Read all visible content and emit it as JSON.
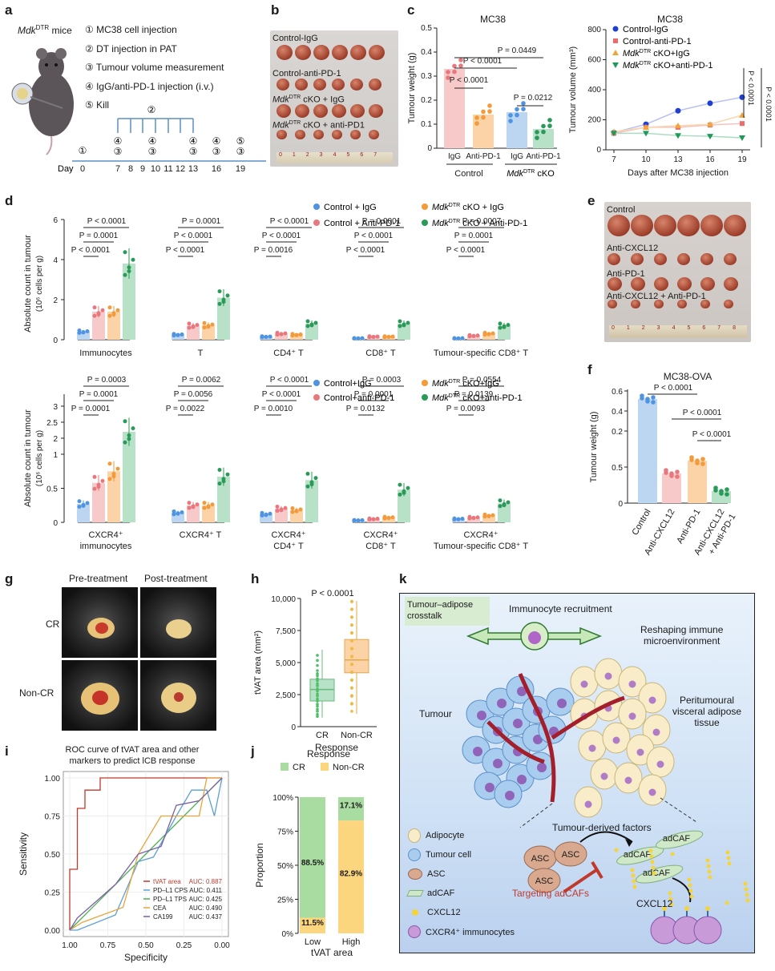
{
  "panel_labels": {
    "a": "a",
    "b": "b",
    "c": "c",
    "d": "d",
    "e": "e",
    "f": "f",
    "g": "g",
    "h": "h",
    "i": "i",
    "j": "j",
    "k": "k"
  },
  "panel_a": {
    "mouse_label": "Mdk",
    "mouse_sup": "DTR",
    "mouse_suffix": " mice",
    "steps": [
      "① MC38 cell injection",
      "② DT injection in PAT",
      "③ Tumour volume measurement",
      "④ IgG/anti-PD-1 injection (i.v.)",
      "⑤ Kill"
    ],
    "day_label": "Day",
    "days": [
      "0",
      "7",
      "8",
      "9",
      "10",
      "11",
      "12",
      "13",
      "16",
      "19"
    ]
  },
  "panel_b": {
    "labels": [
      "Control-IgG",
      "Control-anti-PD-1",
      "Mdk",
      "Mdk"
    ],
    "label3_rest": "cKO + IgG",
    "label4_rest": "cKO + anti-PD1",
    "sup": "DTR"
  },
  "panel_c_weight": {
    "title": "MC38",
    "ylabel": "Tumour weight (g)",
    "pvals": [
      "P = 0.0449",
      "P < 0.0001",
      "P < 0.0001",
      "P = 0.0212"
    ],
    "groups": [
      "IgG",
      "Anti-PD-1",
      "IgG",
      "Anti-PD-1"
    ],
    "group_labels": [
      "Control",
      "Mdk",
      "cKO"
    ],
    "group_sup": "DTR"
  },
  "panel_c_volume": {
    "title": "MC38",
    "ylabel": "Tumour volume (mm³)",
    "xlabel": "Days after MC38 injection",
    "legend": [
      "Control-IgG",
      "Control-anti-PD-1",
      "Mdk",
      "Mdk"
    ],
    "legend_rest": [
      "cKO+IgG",
      "cKO+anti-PD-1"
    ],
    "sup": "DTR",
    "pvals": [
      "P < 0.0001",
      "P < 0.0001"
    ]
  },
  "panel_d": {
    "legend": [
      "Control + IgG",
      "Mdk",
      "Control + Anti-PD-1",
      "Mdk"
    ],
    "legend_rest": [
      "cKO + IgG",
      "cKO + Anti-PD-1"
    ],
    "sup": "DTR",
    "ylabel_top": "Absolute count in tumour",
    "ylabel_top2": "(10⁶ cells per g)",
    "top_cats": [
      "Immunocytes",
      "T",
      "CD4⁺ T",
      "CD8⁺ T",
      "Tumour-specific CD8⁺ T"
    ],
    "top_pvals": [
      [
        "P < 0.0001",
        "P = 0.0001",
        "P < 0.0001"
      ],
      [
        "P < 0.0001",
        "P < 0.0001",
        "P = 0.0001"
      ],
      [
        "P = 0.0016",
        "P < 0.0001",
        "P < 0.0001"
      ],
      [
        "P < 0.0001",
        "P < 0.0001",
        "P = 0.0001"
      ],
      [
        "P < 0.0001",
        "P = 0.0001",
        "P = 0.0007"
      ]
    ],
    "legend2": [
      "Control+IgG",
      "Mdk",
      "Control+anti-PD-1",
      "Mdk"
    ],
    "legend2_rest": [
      "cKO+IgG",
      "cKO+anti-PD-1"
    ],
    "sup2": "DTR",
    "bot_cats": [
      [
        "CXCR4⁺",
        "immunocytes"
      ],
      [
        "CXCR4⁺ T",
        ""
      ],
      [
        "CXCR4⁺",
        "CD4⁺ T"
      ],
      [
        "CXCR4⁺",
        "CD8⁺ T"
      ],
      [
        "CXCR4⁺",
        "Tumour-specific CD8⁺ T"
      ]
    ],
    "bot_pvals": [
      [
        "P = 0.0001",
        "P = 0.0001",
        "P = 0.0003"
      ],
      [
        "P = 0.0022",
        "P = 0.0056",
        "P = 0.0062"
      ],
      [
        "P = 0.0010",
        "P < 0.0001",
        "P < 0.0001"
      ],
      [
        "P = 0.0132",
        "P = 0.0001",
        "P = 0.0003"
      ],
      [
        "P = 0.0093",
        "P = 0.0139",
        "P = 0.0554"
      ]
    ]
  },
  "panel_e": {
    "labels": [
      "Control",
      "Anti-CXCL12",
      "Anti-PD-1",
      "Anti-CXCL12 + Anti-PD-1"
    ]
  },
  "panel_f": {
    "title": "MC38-OVA",
    "ylabel": "Tumour weight (g)",
    "cats": [
      "Control",
      "Anti-CXCL12",
      "Anti-PD-1",
      "Anti-CXCL12",
      "+ Anti-PD-1"
    ],
    "pvals": [
      "P < 0.0001",
      "P < 0.0001",
      "P < 0.0001"
    ]
  },
  "panel_g": {
    "cols": [
      "Pre-treatment",
      "Post-treatment"
    ],
    "rows": [
      "CR",
      "Non-CR"
    ]
  },
  "panel_h": {
    "pval": "P < 0.0001",
    "ylabel": "tVAT area (mm²)",
    "xlabel": "Response",
    "cats": [
      "CR",
      "Non-CR"
    ]
  },
  "panel_i": {
    "title1": "ROC curve of tVAT area and other",
    "title2": "markers to predict lCB response",
    "xlabel": "Specificity",
    "ylabel": "Sensitivity",
    "legend": [
      {
        "name": "tVAT area",
        "auc": "AUC: 0.887",
        "color": "#c0392b"
      },
      {
        "name": "PD–L1 CPS",
        "auc": "AUC: 0.411",
        "color": "#5aa0d6"
      },
      {
        "name": "PD–L1 TPS",
        "auc": "AUC: 0.425",
        "color": "#4caf50"
      },
      {
        "name": "CEA",
        "auc": "AUC: 0.490",
        "color": "#e8a33d"
      },
      {
        "name": "CA199",
        "auc": "AUC: 0.437",
        "color": "#7b5ea7"
      }
    ]
  },
  "panel_j": {
    "title": "Response",
    "legend": [
      "CR",
      "Non-CR"
    ],
    "ylabel": "Proportion",
    "xlabel": "tVAT area",
    "cats": [
      "Low",
      "High"
    ],
    "labels": [
      "88.5%",
      "11.5%",
      "17.1%",
      "82.9%"
    ]
  },
  "panel_k": {
    "crosstalk": "Tumour–adipose crosstalk",
    "recruit": "Immunocyte recruitment",
    "reshape1": "Reshaping immune",
    "reshape2": "microenvironment",
    "tumour": "Tumour",
    "peri1": "Peritumoural",
    "peri2": "visceral adipose",
    "peri3": "tissue",
    "factors": "Tumour-derived factors",
    "asc": "ASC",
    "adcaf": "adCAF",
    "target": "Targeting adCAFs",
    "cxcl12": "CXCL12",
    "legend": [
      "Adipocyte",
      "Tumour cell",
      "ASC",
      "adCAF",
      "CXCL12",
      "CXCR4⁺ immunocytes"
    ]
  },
  "chart_data": [
    {
      "type": "bar",
      "title": "MC38",
      "ylabel": "Tumour weight (g)",
      "categories": [
        "Control IgG",
        "Control Anti-PD-1",
        "Mdk cKO IgG",
        "Mdk cKO Anti-PD-1"
      ],
      "values": [
        0.33,
        0.14,
        0.15,
        0.08
      ],
      "ylim": [
        0,
        0.5
      ]
    },
    {
      "type": "line",
      "title": "MC38",
      "xlabel": "Days after MC38 injection",
      "ylabel": "Tumour volume (mm³)",
      "x": [
        7,
        10,
        13,
        16,
        19
      ],
      "ylim": [
        0,
        800
      ],
      "series": [
        {
          "name": "Control-IgG",
          "values": [
            115,
            170,
            260,
            310,
            350
          ]
        },
        {
          "name": "Control-anti-PD-1",
          "values": [
            110,
            150,
            150,
            165,
            175
          ]
        },
        {
          "name": "Mdk cKO+IgG",
          "values": [
            120,
            150,
            160,
            170,
            230
          ]
        },
        {
          "name": "Mdk cKO+anti-PD-1",
          "values": [
            110,
            110,
            95,
            90,
            80
          ]
        }
      ]
    },
    {
      "type": "bar",
      "ylabel": "Absolute count in tumour (10⁶ cells per g)",
      "ylim": [
        0,
        6
      ],
      "categories": [
        "Immunocytes",
        "T",
        "CD4⁺ T",
        "CD8⁺ T",
        "Tumour-specific CD8⁺ T"
      ],
      "series": [
        {
          "name": "Control + IgG",
          "values": [
            0.4,
            0.25,
            0.15,
            0.07,
            0.07
          ]
        },
        {
          "name": "Control + Anti-PD-1",
          "values": [
            1.4,
            0.7,
            0.3,
            0.15,
            0.2
          ]
        },
        {
          "name": "Mdk cKO + IgG",
          "values": [
            1.4,
            0.72,
            0.25,
            0.15,
            0.3
          ]
        },
        {
          "name": "Mdk cKO + Anti-PD-1",
          "values": [
            3.8,
            2.1,
            0.8,
            0.8,
            0.7
          ]
        }
      ]
    },
    {
      "type": "bar",
      "ylabel": "Absolute count in tumour (10⁶ cells per g)",
      "categories": [
        "CXCR4⁺ immunocytes",
        "CXCR4⁺ T",
        "CXCR4⁺ CD4⁺ T",
        "CXCR4⁺ CD8⁺ T",
        "CXCR4⁺ Tumour-specific CD8⁺ T"
      ],
      "series": [
        {
          "name": "Control+IgG",
          "values": [
            0.27,
            0.14,
            0.12,
            0.03,
            0.05
          ]
        },
        {
          "name": "Control+anti-PD-1",
          "values": [
            0.58,
            0.25,
            0.2,
            0.05,
            0.07
          ]
        },
        {
          "name": "Mdk cKO+IgG",
          "values": [
            0.75,
            0.25,
            0.18,
            0.07,
            0.1
          ]
        },
        {
          "name": "Mdk cKO+anti-PD-1",
          "values": [
            2.2,
            0.67,
            0.62,
            0.48,
            0.28
          ]
        }
      ]
    },
    {
      "type": "bar",
      "title": "MC38-OVA",
      "ylabel": "Tumour weight (g)",
      "categories": [
        "Control",
        "Anti-CXCL12",
        "Anti-PD-1",
        "Anti-CXCL12 + Anti-PD-1"
      ],
      "values": [
        0.47,
        0.18,
        0.22,
        0.06
      ],
      "ylim": [
        0,
        0.6
      ]
    },
    {
      "type": "box",
      "ylabel": "tVAT area (mm²)",
      "xlabel": "Response",
      "categories": [
        "CR",
        "Non-CR"
      ],
      "median": [
        2900,
        5200
      ],
      "q1": [
        2000,
        4200
      ],
      "q3": [
        3700,
        6800
      ],
      "ylim": [
        0,
        10000
      ]
    },
    {
      "type": "line",
      "title": "ROC curve of tVAT area and other markers to predict lCB response",
      "xlabel": "Specificity",
      "ylabel": "Sensitivity",
      "series": [
        {
          "name": "tVAT area",
          "auc": 0.887
        },
        {
          "name": "PD–L1 CPS",
          "auc": 0.411
        },
        {
          "name": "PD–L1 TPS",
          "auc": 0.425
        },
        {
          "name": "CEA",
          "auc": 0.49
        },
        {
          "name": "CA199",
          "auc": 0.437
        }
      ]
    },
    {
      "type": "bar",
      "title": "Response",
      "xlabel": "tVAT area",
      "ylabel": "Proportion",
      "categories": [
        "Low",
        "High"
      ],
      "series": [
        {
          "name": "CR",
          "values": [
            88.5,
            17.1
          ]
        },
        {
          "name": "Non-CR",
          "values": [
            11.5,
            82.9
          ]
        }
      ]
    }
  ]
}
